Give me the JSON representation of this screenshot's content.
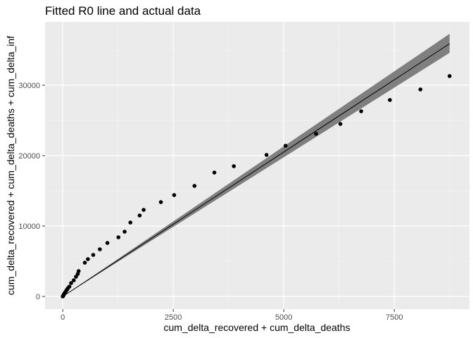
{
  "chart_data": {
    "type": "scatter",
    "title": "Fitted R0 line and  actual data",
    "xlabel": "cum_delta_recovered + cum_delta_deaths",
    "ylabel": "cum_delta_recovered + cum_delta_deaths + cum_delta_inf",
    "xlim": [
      -400,
      9200
    ],
    "ylim": [
      -1800,
      39000
    ],
    "x_ticks": [
      0,
      2500,
      5000,
      7500
    ],
    "x_tick_labels": [
      "0",
      "2500",
      "5000",
      "7500"
    ],
    "y_ticks": [
      0,
      10000,
      20000,
      30000
    ],
    "y_tick_labels": [
      "0",
      "10000",
      "20000",
      "30000"
    ],
    "grid": true,
    "legend": "none",
    "colors": {
      "panel_background": "#ebebeb",
      "grid_major": "#ffffff",
      "grid_minor": "#f5f5f5",
      "points": "#000000",
      "fit_line": "#000000",
      "confidence_band": "#7f7f7f"
    },
    "points": [
      {
        "x": 0,
        "y": 0
      },
      {
        "x": 8,
        "y": 60
      },
      {
        "x": 15,
        "y": 140
      },
      {
        "x": 22,
        "y": 230
      },
      {
        "x": 30,
        "y": 330
      },
      {
        "x": 40,
        "y": 450
      },
      {
        "x": 55,
        "y": 580
      },
      {
        "x": 70,
        "y": 720
      },
      {
        "x": 85,
        "y": 880
      },
      {
        "x": 100,
        "y": 1000
      },
      {
        "x": 120,
        "y": 1200
      },
      {
        "x": 150,
        "y": 1400
      },
      {
        "x": 190,
        "y": 1900
      },
      {
        "x": 250,
        "y": 2300
      },
      {
        "x": 300,
        "y": 2800
      },
      {
        "x": 340,
        "y": 3200
      },
      {
        "x": 360,
        "y": 3600
      },
      {
        "x": 500,
        "y": 4800
      },
      {
        "x": 570,
        "y": 5300
      },
      {
        "x": 690,
        "y": 5900
      },
      {
        "x": 840,
        "y": 6700
      },
      {
        "x": 1010,
        "y": 7600
      },
      {
        "x": 1260,
        "y": 8400
      },
      {
        "x": 1400,
        "y": 9200
      },
      {
        "x": 1530,
        "y": 10500
      },
      {
        "x": 1740,
        "y": 11500
      },
      {
        "x": 1830,
        "y": 12300
      },
      {
        "x": 2220,
        "y": 13400
      },
      {
        "x": 2520,
        "y": 14400
      },
      {
        "x": 2980,
        "y": 15700
      },
      {
        "x": 3430,
        "y": 17600
      },
      {
        "x": 3870,
        "y": 18500
      },
      {
        "x": 4610,
        "y": 20100
      },
      {
        "x": 5040,
        "y": 21400
      },
      {
        "x": 5730,
        "y": 23100
      },
      {
        "x": 6280,
        "y": 24500
      },
      {
        "x": 6750,
        "y": 26300
      },
      {
        "x": 7400,
        "y": 27900
      },
      {
        "x": 8090,
        "y": 29400
      },
      {
        "x": 8750,
        "y": 31300
      }
    ],
    "fit_line": {
      "x": [
        0,
        8750
      ],
      "y": [
        0,
        35900
      ]
    },
    "confidence_band": {
      "x": [
        0,
        8750
      ],
      "y_lower": [
        0,
        34600
      ],
      "y_upper": [
        0,
        37300
      ]
    }
  }
}
